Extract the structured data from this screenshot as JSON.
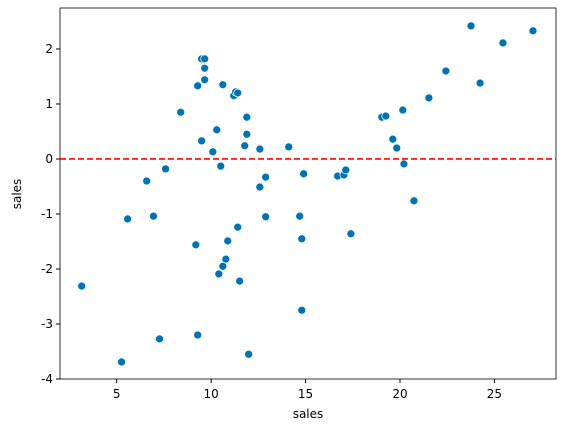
{
  "chart_data": {
    "type": "scatter",
    "xlabel": "sales",
    "ylabel": "sales",
    "color": "#0173b2",
    "x": [
      3.15,
      5.26,
      5.58,
      6.59,
      6.95,
      7.27,
      7.59,
      8.39,
      9.19,
      9.29,
      9.29,
      9.5,
      9.5,
      9.66,
      9.66,
      9.66,
      10.09,
      10.3,
      10.41,
      10.51,
      10.62,
      10.62,
      10.78,
      10.88,
      11.2,
      11.3,
      11.41,
      11.41,
      11.51,
      11.78,
      11.89,
      11.89,
      11.99,
      12.58,
      12.58,
      12.89,
      12.89,
      14.11,
      14.69,
      14.8,
      14.8,
      14.9,
      16.7,
      17.03,
      17.13,
      17.4,
      19.04,
      19.25,
      19.62,
      19.83,
      20.15,
      20.21,
      20.74,
      21.53,
      22.43,
      23.76,
      24.24,
      25.45,
      27.04
    ],
    "y": [
      -2.31,
      -3.69,
      -1.09,
      -0.4,
      -1.04,
      -3.27,
      -0.18,
      0.85,
      -1.56,
      1.33,
      -3.2,
      0.33,
      1.82,
      1.82,
      1.65,
      1.44,
      0.13,
      0.53,
      -2.09,
      -0.13,
      -1.95,
      1.35,
      -1.82,
      -1.49,
      1.15,
      1.22,
      1.2,
      -1.24,
      -2.22,
      0.24,
      0.76,
      0.45,
      -3.55,
      0.18,
      -0.51,
      -0.33,
      -1.05,
      0.22,
      -1.04,
      -1.45,
      -2.75,
      -0.27,
      -0.31,
      -0.29,
      -0.2,
      -1.36,
      0.76,
      0.78,
      0.36,
      0.2,
      0.89,
      -0.09,
      -0.76,
      1.11,
      1.6,
      2.42,
      1.38,
      2.11,
      2.33
    ],
    "xlim": [
      2.0,
      28.26
    ],
    "ylim": [
      -4,
      2.745
    ],
    "xticks": [
      5,
      10,
      15,
      20,
      25
    ],
    "yticks": [
      -4,
      -3,
      -2,
      -1,
      0,
      1,
      2
    ],
    "hline": {
      "y": 0,
      "color": "#ff0000"
    }
  }
}
